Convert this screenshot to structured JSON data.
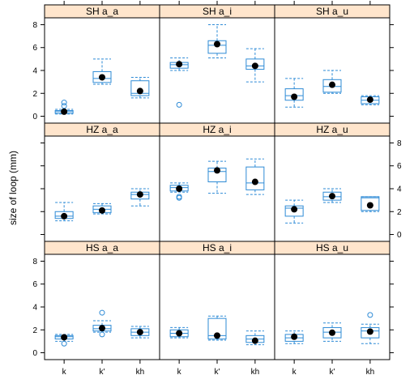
{
  "chart_data": {
    "type": "box",
    "ylabel": "size of loop (mm)",
    "categories": [
      "k",
      "k'",
      "kh"
    ],
    "y_ticks": [
      0,
      2,
      4,
      6,
      8
    ],
    "ylim": [
      -0.6,
      8.6
    ],
    "colors": {
      "box": "#2e8bd6",
      "strip": "#ffe5cc",
      "frame": "#000000",
      "mean": "#000000"
    },
    "panels": [
      {
        "label": "SH a_a",
        "boxes": [
          {
            "category": "k",
            "whisker_low": 0.2,
            "q1": 0.25,
            "median": 0.4,
            "q3": 0.5,
            "whisker_high": 0.6,
            "outliers": [
              0.9,
              1.2
            ],
            "mean": 0.4
          },
          {
            "category": "k'",
            "whisker_low": 2.8,
            "q1": 2.95,
            "median": 3.3,
            "q3": 3.9,
            "whisker_high": 5.0,
            "outliers": [],
            "mean": 3.4
          },
          {
            "category": "kh",
            "whisker_low": 1.6,
            "q1": 1.8,
            "median": 2.0,
            "q3": 3.1,
            "whisker_high": 3.4,
            "outliers": [],
            "mean": 2.2
          }
        ]
      },
      {
        "label": "SH a_i",
        "boxes": [
          {
            "category": "k",
            "whisker_low": 4.0,
            "q1": 4.2,
            "median": 4.5,
            "q3": 4.7,
            "whisker_high": 5.1,
            "outliers": [
              1.0
            ],
            "mean": 4.55
          },
          {
            "category": "k'",
            "whisker_low": 5.1,
            "q1": 5.5,
            "median": 6.2,
            "q3": 6.6,
            "whisker_high": 8.0,
            "outliers": [],
            "mean": 6.3
          },
          {
            "category": "kh",
            "whisker_low": 3.0,
            "q1": 4.1,
            "median": 4.4,
            "q3": 5.0,
            "whisker_high": 5.9,
            "outliers": [],
            "mean": 4.4
          }
        ]
      },
      {
        "label": "SH a_u",
        "boxes": [
          {
            "category": "k",
            "whisker_low": 0.8,
            "q1": 1.4,
            "median": 1.8,
            "q3": 2.4,
            "whisker_high": 3.3,
            "outliers": [],
            "mean": 1.7
          },
          {
            "category": "k'",
            "whisker_low": 2.0,
            "q1": 2.1,
            "median": 2.6,
            "q3": 3.2,
            "whisker_high": 4.0,
            "outliers": [],
            "mean": 2.75
          },
          {
            "category": "kh",
            "whisker_low": 1.0,
            "q1": 1.1,
            "median": 1.4,
            "q3": 1.7,
            "whisker_high": 1.8,
            "outliers": [],
            "mean": 1.45
          }
        ]
      },
      {
        "label": "HZ a_a",
        "boxes": [
          {
            "category": "k",
            "whisker_low": 1.2,
            "q1": 1.4,
            "median": 1.6,
            "q3": 2.0,
            "whisker_high": 2.8,
            "outliers": [],
            "mean": 1.6
          },
          {
            "category": "k'",
            "whisker_low": 1.8,
            "q1": 1.9,
            "median": 2.2,
            "q3": 2.5,
            "whisker_high": 2.7,
            "outliers": [],
            "mean": 2.1
          },
          {
            "category": "kh",
            "whisker_low": 2.5,
            "q1": 3.1,
            "median": 3.5,
            "q3": 3.7,
            "whisker_high": 4.0,
            "outliers": [],
            "mean": 3.5
          }
        ]
      },
      {
        "label": "HZ a_i",
        "boxes": [
          {
            "category": "k",
            "whisker_low": 3.7,
            "q1": 3.8,
            "median": 4.1,
            "q3": 4.3,
            "whisker_high": 4.5,
            "outliers": [
              3.2,
              3.3
            ],
            "mean": 4.0
          },
          {
            "category": "k'",
            "whisker_low": 3.6,
            "q1": 4.6,
            "median": 5.5,
            "q3": 5.8,
            "whisker_high": 6.4,
            "outliers": [],
            "mean": 5.6
          },
          {
            "category": "kh",
            "whisker_low": 3.5,
            "q1": 3.9,
            "median": 4.5,
            "q3": 5.9,
            "whisker_high": 6.6,
            "outliers": [],
            "mean": 4.6
          }
        ]
      },
      {
        "label": "HZ a_u",
        "boxes": [
          {
            "category": "k",
            "whisker_low": 1.0,
            "q1": 1.6,
            "median": 2.3,
            "q3": 2.5,
            "whisker_high": 3.0,
            "outliers": [],
            "mean": 2.2
          },
          {
            "category": "k'",
            "whisker_low": 2.8,
            "q1": 3.0,
            "median": 3.3,
            "q3": 3.7,
            "whisker_high": 4.0,
            "outliers": [],
            "mean": 3.35
          },
          {
            "category": "kh",
            "whisker_low": 2.0,
            "q1": 2.1,
            "median": 3.2,
            "q3": 3.3,
            "whisker_high": 3.3,
            "outliers": [],
            "mean": 2.55
          }
        ]
      },
      {
        "label": "HS a_a",
        "boxes": [
          {
            "category": "k",
            "whisker_low": 1.0,
            "q1": 1.2,
            "median": 1.4,
            "q3": 1.5,
            "whisker_high": 1.6,
            "outliers": [
              0.8
            ],
            "mean": 1.35
          },
          {
            "category": "k'",
            "whisker_low": 1.8,
            "q1": 1.9,
            "median": 2.1,
            "q3": 2.4,
            "whisker_high": 2.8,
            "outliers": [
              1.6,
              3.5
            ],
            "mean": 2.15
          },
          {
            "category": "kh",
            "whisker_low": 1.3,
            "q1": 1.5,
            "median": 1.8,
            "q3": 2.1,
            "whisker_high": 2.3,
            "outliers": [],
            "mean": 1.8
          }
        ]
      },
      {
        "label": "HS a_i",
        "boxes": [
          {
            "category": "k",
            "whisker_low": 1.3,
            "q1": 1.4,
            "median": 1.7,
            "q3": 2.0,
            "whisker_high": 2.2,
            "outliers": [],
            "mean": 1.7
          },
          {
            "category": "k'",
            "whisker_low": 1.1,
            "q1": 1.2,
            "median": 1.5,
            "q3": 3.0,
            "whisker_high": 3.2,
            "outliers": [],
            "mean": 1.5
          },
          {
            "category": "kh",
            "whisker_low": 0.7,
            "q1": 0.9,
            "median": 1.2,
            "q3": 1.5,
            "whisker_high": 1.9,
            "outliers": [],
            "mean": 1.05
          }
        ]
      },
      {
        "label": "HS a_u",
        "boxes": [
          {
            "category": "k",
            "whisker_low": 0.8,
            "q1": 1.0,
            "median": 1.3,
            "q3": 1.6,
            "whisker_high": 1.9,
            "outliers": [],
            "mean": 1.4
          },
          {
            "category": "k'",
            "whisker_low": 1.0,
            "q1": 1.3,
            "median": 1.8,
            "q3": 2.2,
            "whisker_high": 2.6,
            "outliers": [],
            "mean": 1.75
          },
          {
            "category": "kh",
            "whisker_low": 0.8,
            "q1": 1.3,
            "median": 1.9,
            "q3": 2.2,
            "whisker_high": 2.5,
            "outliers": [
              3.3
            ],
            "mean": 1.85
          }
        ]
      }
    ]
  }
}
